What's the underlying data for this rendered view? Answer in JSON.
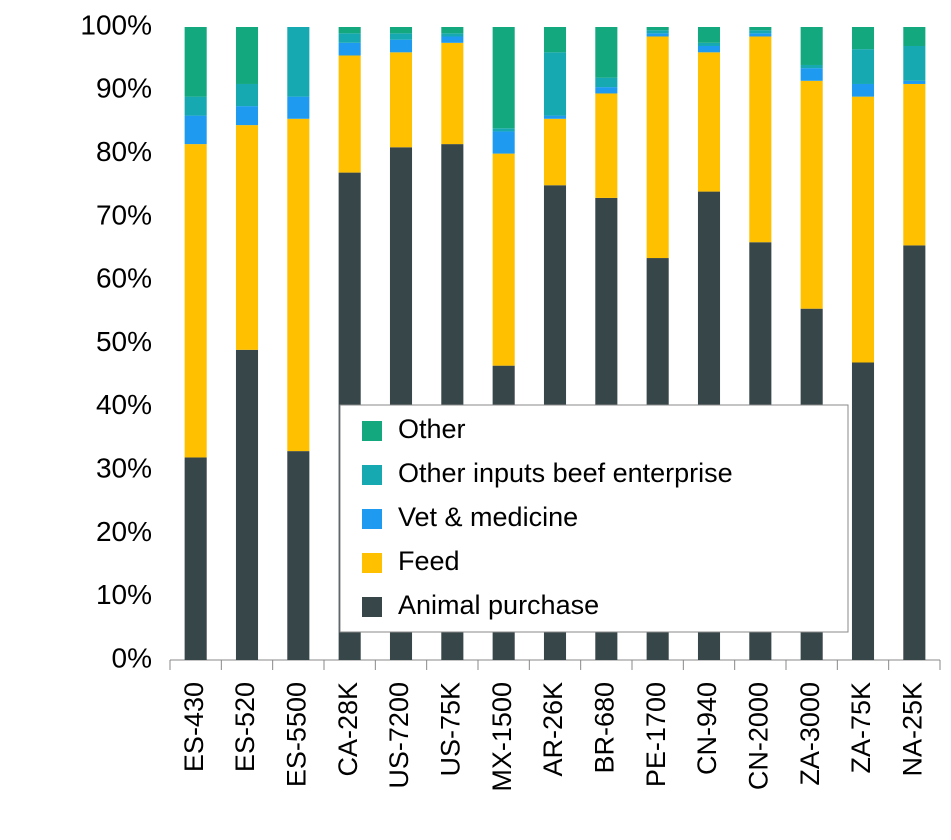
{
  "chart_data": {
    "type": "stacked_bar",
    "categories": [
      "ES-430",
      "ES-520",
      "ES-5500",
      "CA-28K",
      "US-7200",
      "US-75K",
      "MX-1500",
      "AR-26K",
      "BR-680",
      "PE-1700",
      "CN-940",
      "CN-2000",
      "ZA-3000",
      "ZA-75K",
      "NA-25K"
    ],
    "series": [
      {
        "name": "Animal purchase",
        "color": "#374649",
        "values": [
          32,
          49,
          33,
          77,
          81,
          81.5,
          46.5,
          75,
          73,
          63.5,
          74,
          66,
          55.5,
          47,
          65.5
        ]
      },
      {
        "name": "Feed",
        "color": "#ffc000",
        "values": [
          49.5,
          35.5,
          52.5,
          18.5,
          15,
          16,
          33.5,
          10.5,
          16.5,
          35,
          22,
          32.5,
          36,
          42,
          25.5
        ]
      },
      {
        "name": "Vet & medicine",
        "color": "#1e9bf0",
        "values": [
          4.5,
          3,
          3.5,
          2,
          2,
          1,
          3.5,
          0.5,
          1,
          0.5,
          1,
          0.5,
          2,
          2,
          0.5
        ]
      },
      {
        "name": "Other inputs beef enterprise",
        "color": "#17a9b1",
        "values": [
          3,
          3.5,
          11,
          1.5,
          1,
          0.5,
          0.5,
          10,
          1.5,
          0.5,
          0.5,
          0.5,
          0.5,
          5.5,
          5.5
        ]
      },
      {
        "name": "Other",
        "color": "#14a87e",
        "values": [
          11,
          9,
          0,
          1,
          1,
          1,
          16,
          4,
          8,
          0.5,
          2.5,
          0.5,
          6,
          3.5,
          3
        ]
      }
    ],
    "ylim": [
      0,
      100
    ],
    "yticks": [
      {
        "value": 0,
        "label": "0%"
      },
      {
        "value": 10,
        "label": "10%"
      },
      {
        "value": 20,
        "label": "20%"
      },
      {
        "value": 30,
        "label": "30%"
      },
      {
        "value": 40,
        "label": "40%"
      },
      {
        "value": 50,
        "label": "50%"
      },
      {
        "value": 60,
        "label": "60%"
      },
      {
        "value": 70,
        "label": "70%"
      },
      {
        "value": 80,
        "label": "80%"
      },
      {
        "value": 90,
        "label": "90%"
      },
      {
        "value": 100,
        "label": "100%"
      }
    ],
    "legend": "lower center"
  }
}
